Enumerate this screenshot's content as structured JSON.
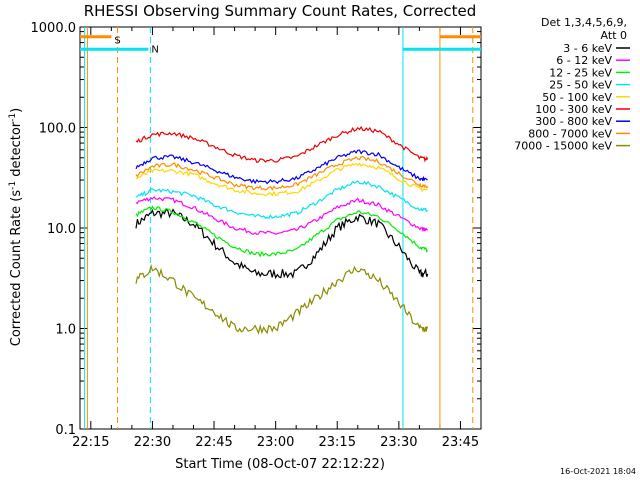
{
  "chart_data": {
    "type": "line",
    "title": "RHESSI Observing Summary Count Rates, Corrected",
    "xlabel": "Start Time (08-Oct-07 22:12:22)",
    "ylabel": "Corrected Count Rate (s⁻¹ detector⁻¹)",
    "ylabel_main": "Corrected Count Rate (s",
    "ylabel_sup1": "-1",
    "ylabel_mid": " detector",
    "ylabel_sup2": "-1",
    "ylabel_end": ")",
    "yscale": "log",
    "ylim": [
      0.1,
      1000
    ],
    "xlim": [
      "22:12:22",
      "23:50:00"
    ],
    "x_ticks": [
      "22:15",
      "22:30",
      "22:45",
      "23:00",
      "23:15",
      "23:30",
      "23:45"
    ],
    "y_ticks": [
      "0.1",
      "1.0",
      "10.0",
      "100.0",
      "1000.0"
    ],
    "legend_header": [
      "Det 1,3,4,5,6,9,",
      "Att 0"
    ],
    "legend_position": "right",
    "timestamp": "16-Oct-2021 18:04",
    "flags": [
      {
        "label": "S",
        "color": "#ff8c00",
        "level": 800,
        "segments": [
          [
            "22:12:22",
            "22:20:00"
          ],
          [
            "23:40:00",
            "23:50:00"
          ]
        ]
      },
      {
        "label": "N",
        "color": "#00e5ee",
        "level": 600,
        "segments": [
          [
            "22:12:22",
            "22:29:00"
          ],
          [
            "23:31:00",
            "23:50:00"
          ]
        ]
      }
    ],
    "vlines": [
      {
        "time": "22:13:30",
        "color": "#00e5ee",
        "style": "solid"
      },
      {
        "time": "22:14:10",
        "color": "#ff8c00",
        "style": "solid"
      },
      {
        "time": "22:21:30",
        "color": "#ff8c00",
        "style": "dashed"
      },
      {
        "time": "22:29:30",
        "color": "#00e5ee",
        "style": "dashed"
      },
      {
        "time": "23:31:00",
        "color": "#00e5ee",
        "style": "solid"
      },
      {
        "time": "23:40:00",
        "color": "#ff8c00",
        "style": "solid"
      },
      {
        "time": "23:48:00",
        "color": "#ff8c00",
        "style": "dashed"
      }
    ],
    "x": [
      "22:26",
      "22:30",
      "22:35",
      "22:40",
      "22:45",
      "22:50",
      "22:55",
      "23:00",
      "23:05",
      "23:10",
      "23:15",
      "23:20",
      "23:25",
      "23:30",
      "23:35",
      "23:37"
    ],
    "series": [
      {
        "name": "3 - 6 keV",
        "color": "#000000",
        "values": [
          11,
          14,
          14,
          11,
          7,
          4.5,
          3.5,
          3.5,
          3.5,
          5.5,
          10,
          13,
          11,
          6.5,
          3.5,
          3.5
        ]
      },
      {
        "name": "6 - 12 keV",
        "color": "#ff00ff",
        "values": [
          18,
          20,
          19,
          16,
          12.5,
          10,
          9,
          8.8,
          9.5,
          12,
          16,
          19,
          17,
          13,
          10,
          9.5
        ]
      },
      {
        "name": "12 - 25 keV",
        "color": "#00ee00",
        "values": [
          13.5,
          16,
          14.5,
          11.5,
          8.5,
          6.5,
          5.5,
          5.5,
          6,
          8.5,
          12,
          14.5,
          13,
          9.5,
          6.5,
          6
        ]
      },
      {
        "name": "25 - 50 keV",
        "color": "#00e5ee",
        "values": [
          20,
          24,
          23,
          21,
          17,
          14.5,
          13,
          13,
          14,
          18,
          24,
          29,
          26,
          20,
          15.5,
          15
        ]
      },
      {
        "name": "50 - 100 keV",
        "color": "#ffd700",
        "values": [
          31,
          37,
          37,
          34,
          28,
          24,
          22,
          22,
          23,
          29,
          38,
          44,
          40,
          31,
          24.5,
          24
        ]
      },
      {
        "name": "100 - 300 keV",
        "color": "#ee0000",
        "values": [
          72,
          85,
          88,
          78,
          65,
          53,
          47,
          47,
          51,
          66,
          84,
          98,
          92,
          68,
          50,
          48
        ]
      },
      {
        "name": "300 - 800 keV",
        "color": "#0000ee",
        "values": [
          40,
          50,
          51,
          45,
          38,
          32,
          29,
          29,
          31,
          39,
          50,
          58,
          54,
          40,
          31,
          30
        ]
      },
      {
        "name": "800 - 7000 keV",
        "color": "#ff8c00",
        "values": [
          33,
          41,
          43,
          38,
          32,
          27,
          25,
          25,
          27,
          34,
          43,
          50,
          46,
          35,
          27,
          26
        ]
      },
      {
        "name": "7000 - 15000 keV",
        "color": "#8b8b00",
        "values": [
          3,
          4,
          3,
          2,
          1.5,
          1,
          1,
          1,
          1.4,
          2,
          3,
          4,
          3,
          1.8,
          1,
          1
        ]
      }
    ]
  }
}
